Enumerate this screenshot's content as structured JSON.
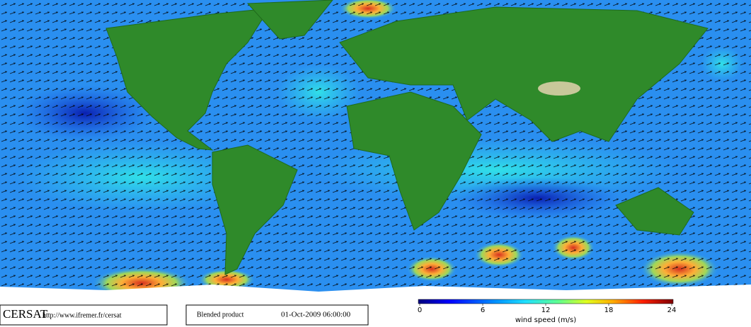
{
  "footer": {
    "logo": "CERSAT",
    "url": "http://www.ifremer.fr/cersat",
    "product": "Blended product",
    "datetime": "01-Oct-2009 06:00:00"
  },
  "colorbar": {
    "label": "wind speed (m/s)",
    "range": [
      0,
      24
    ],
    "ticks": [
      0,
      6,
      12,
      18,
      24
    ]
  }
}
